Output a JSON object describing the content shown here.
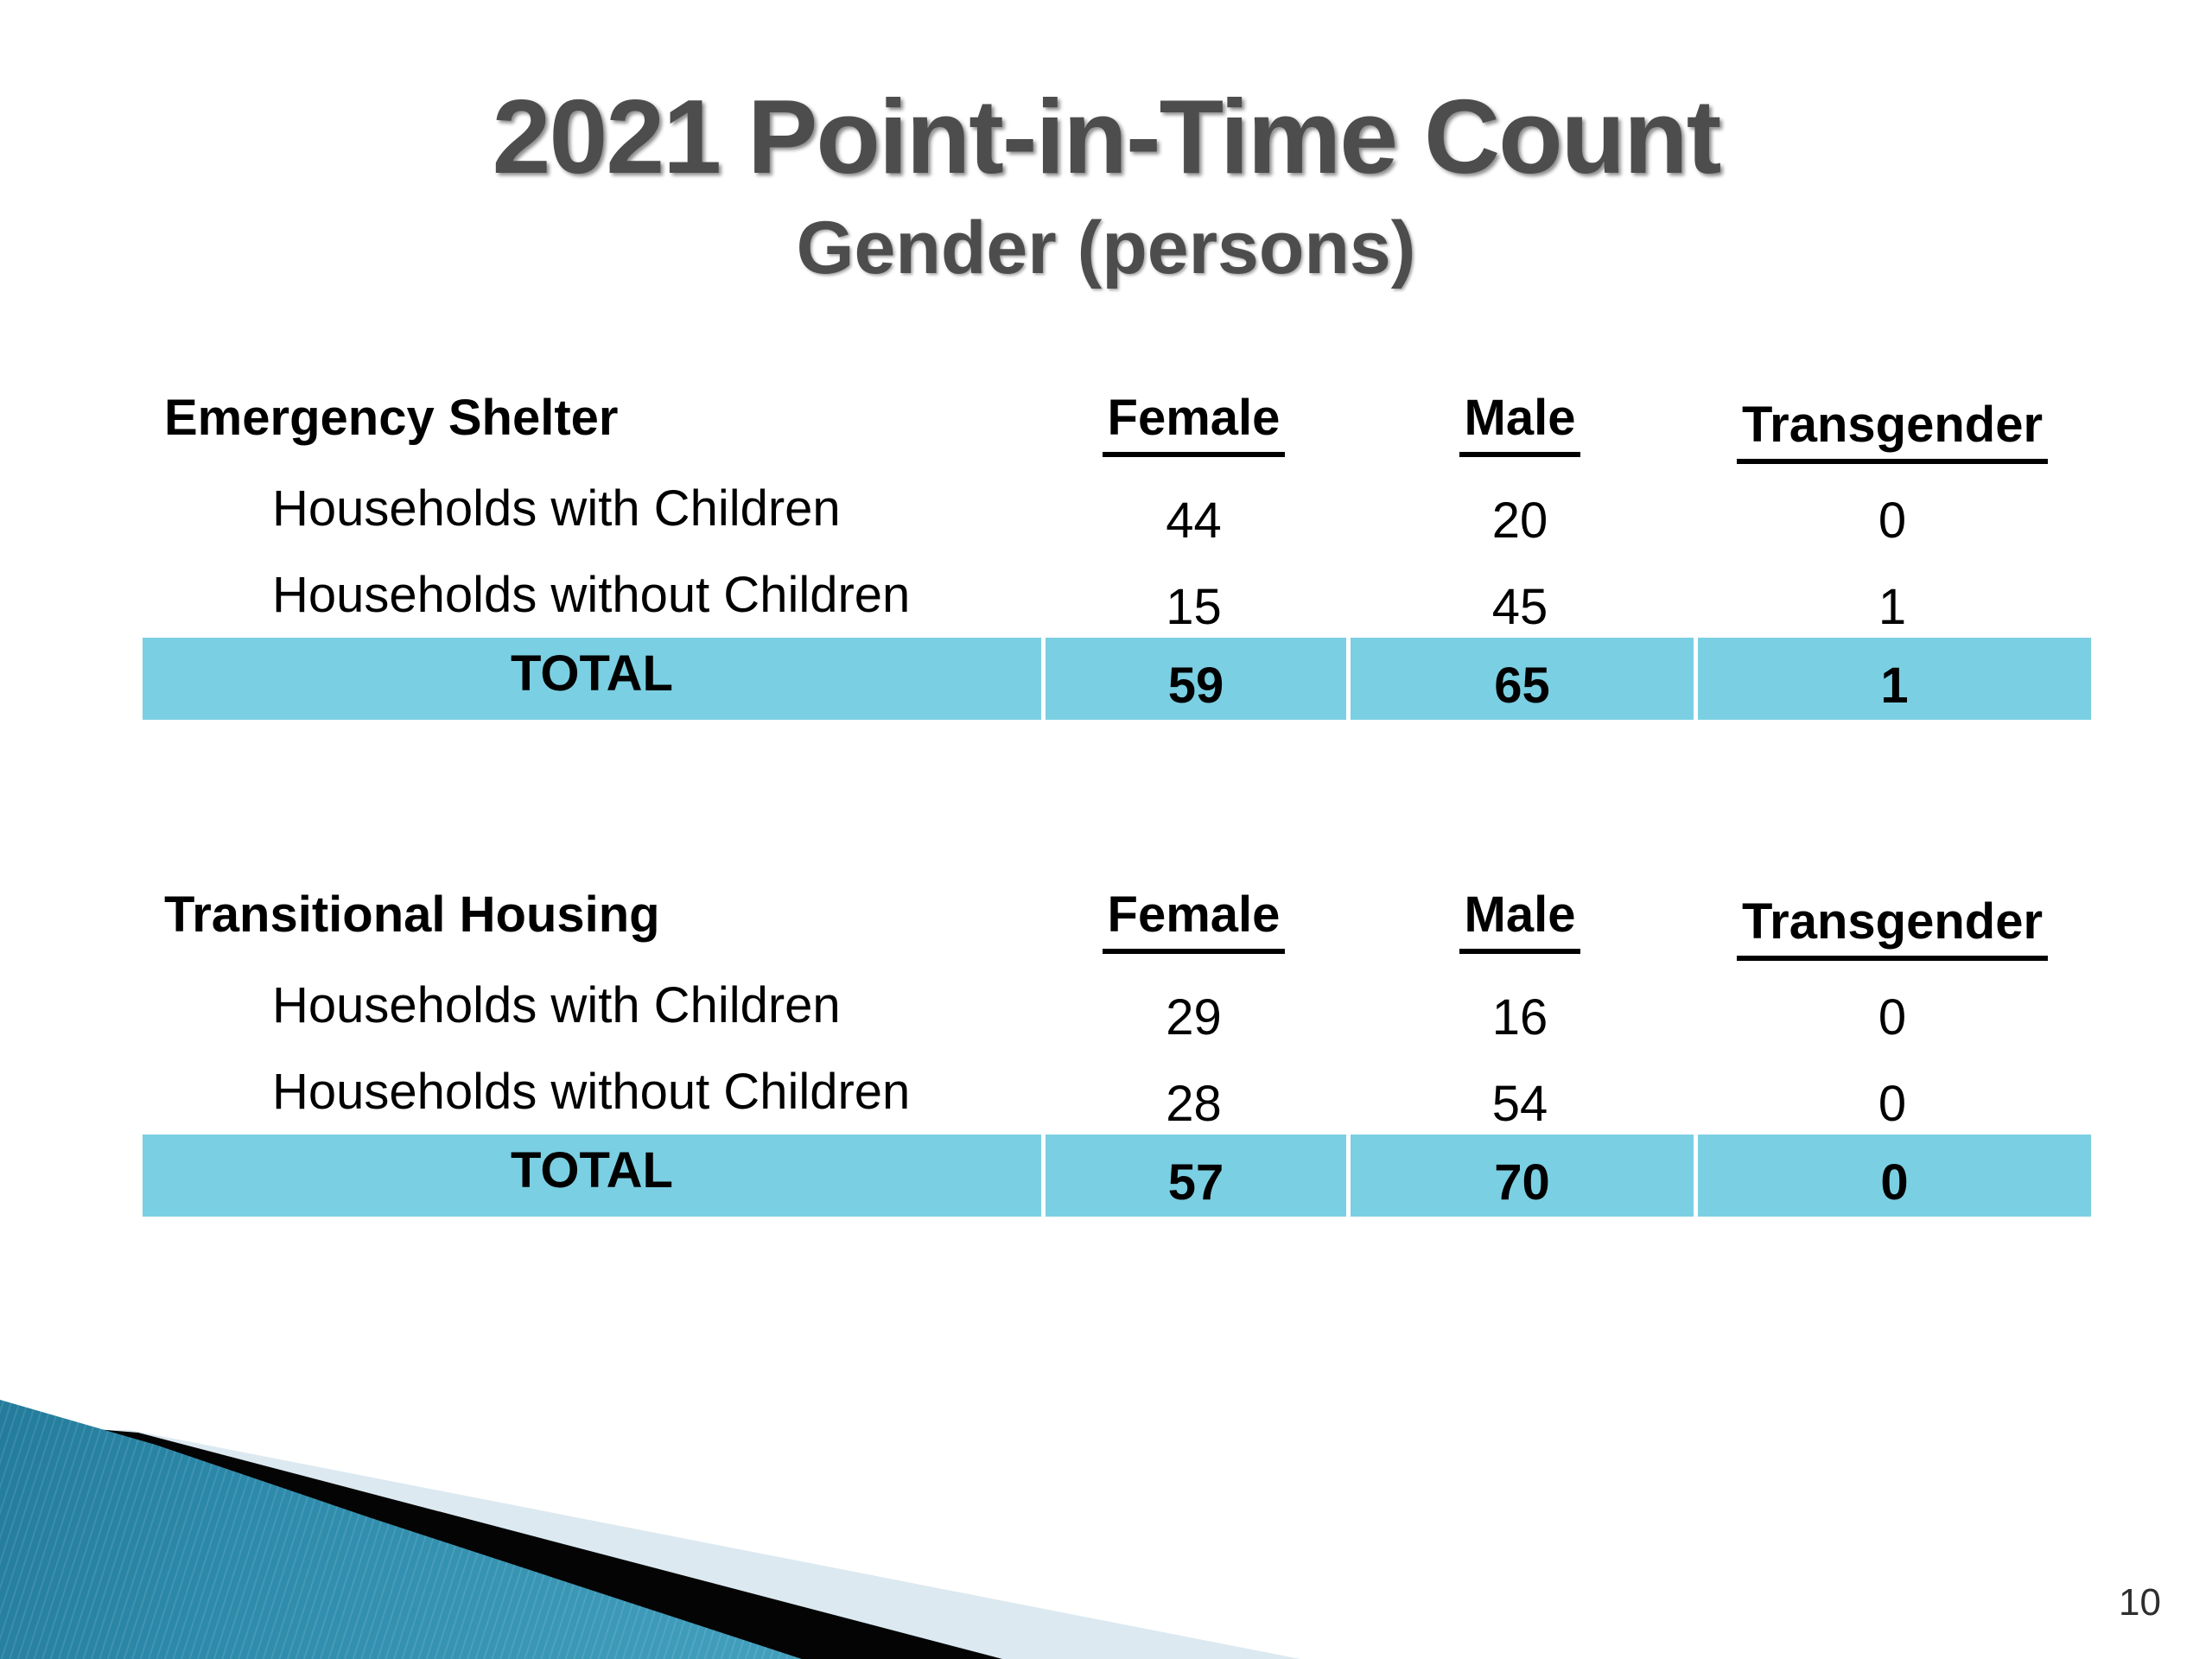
{
  "slide": {
    "title": "2021 Point-in-Time Count",
    "subtitle": "Gender (persons)",
    "page_number": "10"
  },
  "tables": [
    {
      "section": "Emergency Shelter",
      "columns": [
        "Female",
        "Male",
        "Transgender"
      ],
      "rows": [
        {
          "label": "Households with Children",
          "values": [
            "44",
            "20",
            "0"
          ]
        },
        {
          "label": "Households without Children",
          "values": [
            "15",
            "45",
            "1"
          ]
        }
      ],
      "total": {
        "label": "TOTAL",
        "values": [
          "59",
          "65",
          "1"
        ]
      }
    },
    {
      "section": "Transitional Housing",
      "columns": [
        "Female",
        "Male",
        "Transgender"
      ],
      "rows": [
        {
          "label": "Households with Children",
          "values": [
            "29",
            "16",
            "0"
          ]
        },
        {
          "label": "Households without Children",
          "values": [
            "28",
            "54",
            "0"
          ]
        }
      ],
      "total": {
        "label": "TOTAL",
        "values": [
          "57",
          "70",
          "0"
        ]
      }
    }
  ],
  "colors": {
    "total_row_bg": "#7BCFE2",
    "total_row_separator": "#FFFFFF",
    "accent_teal_wedge": "#2F8FAF",
    "accent_pale_wedge": "#DCE9F0",
    "accent_black_wedge": "#040404",
    "title_gray": "#4D4D4D",
    "text_black": "#000000"
  }
}
